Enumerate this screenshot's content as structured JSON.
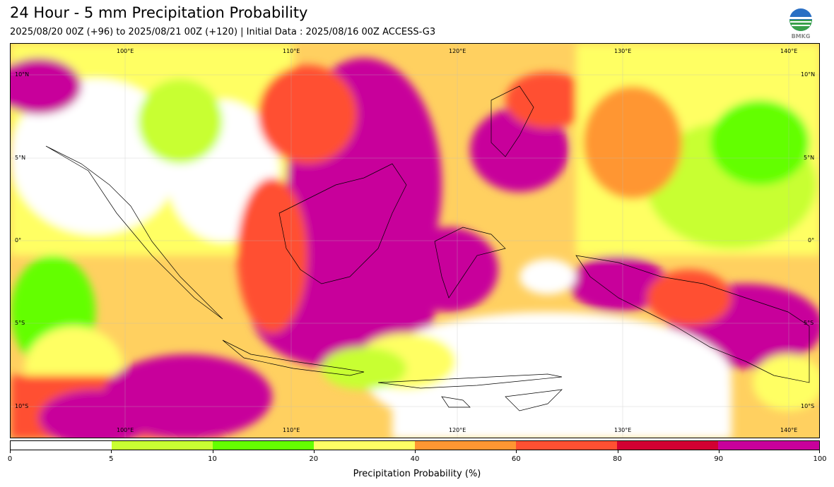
{
  "header": {
    "title": "24 Hour - 5 mm Precipitation Probability",
    "subtitle": "2025/08/20 00Z (+96) to 2025/08/21 00Z (+120) | Initial Data : 2025/08/16 00Z ACCESS-G3"
  },
  "logo": {
    "icon": "bmkg-logo-icon",
    "text": "BMKG"
  },
  "map": {
    "lon_labels_top": [
      "100°E",
      "110°E",
      "120°E",
      "130°E",
      "140°E"
    ],
    "lon_labels_bottom": [
      "100°E",
      "110°E",
      "120°E",
      "130°E",
      "140°E"
    ],
    "lat_labels_left": [
      "10°N",
      "5°N",
      "0°",
      "5°S",
      "10°S"
    ],
    "lat_labels_right": [
      "10°N",
      "5°N",
      "0°",
      "5°S",
      "10°S"
    ]
  },
  "colorbar": {
    "ticks": [
      "0",
      "5",
      "10",
      "20",
      "40",
      "60",
      "80",
      "90",
      "100"
    ],
    "colors": [
      "#ffffff",
      "#c8ff32",
      "#64ff00",
      "#ffff64",
      "#ff9632",
      "#ff5032",
      "#d20032",
      "#c8009b"
    ],
    "label": "Precipitation Probability (%)"
  }
}
